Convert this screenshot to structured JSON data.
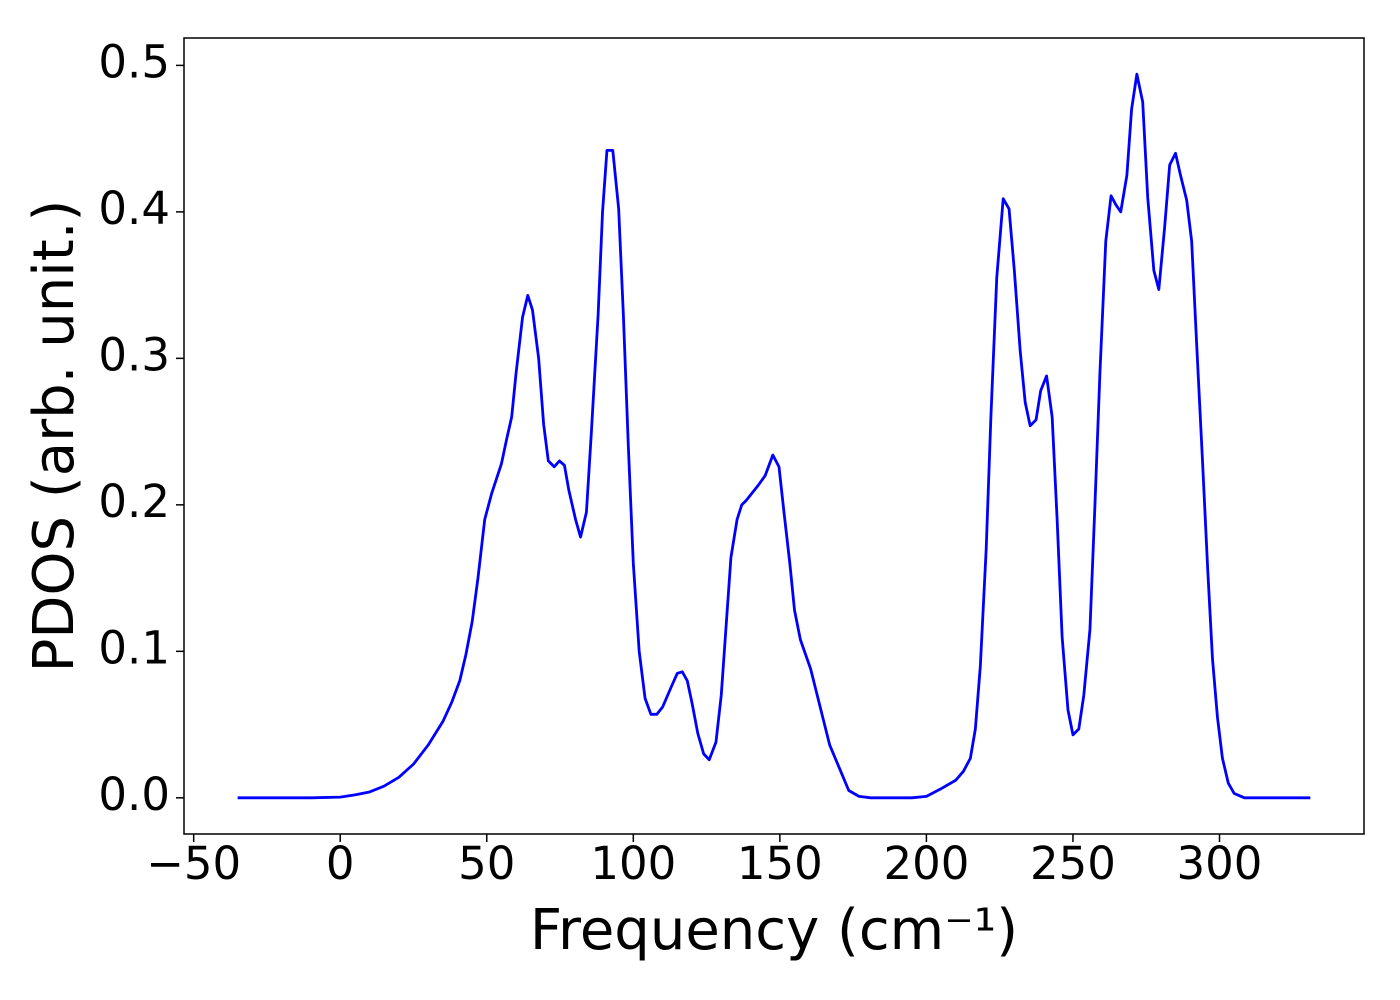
{
  "chart_data": {
    "type": "line",
    "xlabel": "Frequency (cm⁻¹)",
    "ylabel": "PDOS (arb. unit.)",
    "xlim": [
      -53.3,
      349.3
    ],
    "ylim": [
      -0.0247,
      0.5187
    ],
    "xticks": [
      {
        "value": -50,
        "label": "−50"
      },
      0,
      50,
      100,
      150,
      200,
      250,
      300
    ],
    "yticks": [
      {
        "value": 0,
        "label": "0.0"
      },
      0.1,
      0.2,
      0.3,
      0.4,
      0.5
    ],
    "grid": false,
    "series": [
      {
        "color": "#0000ff",
        "x": [
          -35,
          -20,
          -10,
          0,
          5,
          10,
          15,
          20,
          25,
          30,
          35,
          38,
          40.8,
          42.9,
          45,
          47,
          49.3,
          51.7,
          55,
          56.8,
          58.5,
          60,
          62.2,
          64,
          65.6,
          67.7,
          69.4,
          71,
          73,
          74.8,
          76.5,
          78,
          80.3,
          82,
          84,
          85.7,
          88,
          89.5,
          91,
          93,
          95,
          96.6,
          98.3,
          100,
          102,
          104,
          106,
          108,
          110,
          113,
          115,
          116.7,
          118.4,
          120,
          122,
          124,
          125.9,
          128.2,
          130,
          133.3,
          135.4,
          137,
          138.5,
          142.5,
          145,
          147.6,
          149.7,
          151.4,
          153.4,
          155,
          157,
          160.5,
          164,
          167,
          171,
          173.5,
          177,
          181,
          195,
          200,
          204.8,
          210,
          212.6,
          215,
          216.7,
          218.4,
          220.4,
          222,
          224,
          226.2,
          228.2,
          230,
          232,
          233.7,
          235.4,
          237.4,
          239,
          241,
          242.9,
          244.6,
          246.3,
          248.3,
          250,
          252,
          253.7,
          255.8,
          257.5,
          259.2,
          261.2,
          263,
          264.6,
          266.3,
          268.4,
          270,
          271.8,
          273.8,
          275.5,
          277.6,
          279.3,
          281.3,
          283,
          285,
          286.7,
          288.8,
          290.5,
          292.2,
          294.2,
          296,
          297.6,
          299.3,
          301,
          303,
          305,
          308.5,
          331
        ],
        "values": [
          0,
          0,
          0,
          0.0005,
          0.002,
          0.004,
          0.008,
          0.014,
          0.023,
          0.036,
          0.052,
          0.065,
          0.08,
          0.098,
          0.12,
          0.15,
          0.19,
          0.208,
          0.228,
          0.245,
          0.26,
          0.29,
          0.328,
          0.343,
          0.333,
          0.3,
          0.255,
          0.23,
          0.226,
          0.23,
          0.227,
          0.21,
          0.19,
          0.178,
          0.195,
          0.25,
          0.33,
          0.4,
          0.442,
          0.442,
          0.402,
          0.33,
          0.24,
          0.16,
          0.1,
          0.068,
          0.057,
          0.057,
          0.062,
          0.076,
          0.085,
          0.086,
          0.08,
          0.065,
          0.044,
          0.03,
          0.026,
          0.038,
          0.07,
          0.164,
          0.19,
          0.2,
          0.203,
          0.213,
          0.22,
          0.234,
          0.226,
          0.195,
          0.16,
          0.128,
          0.108,
          0.088,
          0.06,
          0.036,
          0.017,
          0.005,
          0.001,
          0,
          0,
          0.001,
          0.006,
          0.012,
          0.018,
          0.027,
          0.047,
          0.09,
          0.17,
          0.26,
          0.355,
          0.409,
          0.402,
          0.36,
          0.305,
          0.27,
          0.254,
          0.258,
          0.278,
          0.288,
          0.26,
          0.19,
          0.11,
          0.06,
          0.043,
          0.047,
          0.07,
          0.115,
          0.2,
          0.29,
          0.38,
          0.411,
          0.405,
          0.4,
          0.425,
          0.47,
          0.494,
          0.475,
          0.41,
          0.36,
          0.347,
          0.39,
          0.432,
          0.44,
          0.425,
          0.408,
          0.38,
          0.31,
          0.23,
          0.155,
          0.095,
          0.055,
          0.027,
          0.01,
          0.003,
          0,
          0
        ]
      }
    ]
  }
}
